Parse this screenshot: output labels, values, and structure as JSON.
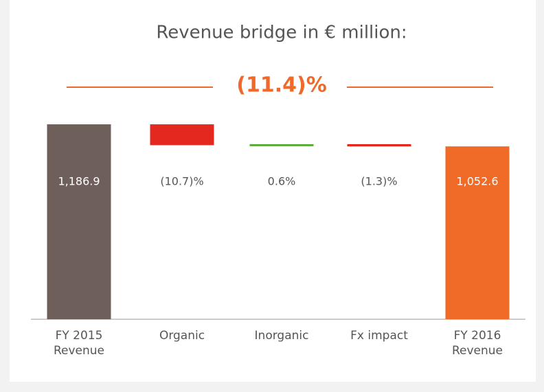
{
  "chart_data": {
    "type": "waterfall",
    "title": "Revenue bridge in € million:",
    "annotation": "(11.4)%",
    "categories": [
      "FY 2015 Revenue",
      "Organic",
      "Inorganic",
      "Fx impact",
      "FY 2016 Revenue"
    ],
    "kinds": [
      "total",
      "percent",
      "percent",
      "percent",
      "total"
    ],
    "values": [
      1186.9,
      -10.7,
      0.6,
      -1.3,
      1052.6
    ],
    "value_labels": [
      "1,186.9",
      "(10.7)%",
      "0.6%",
      "(1.3)%",
      "1,052.6"
    ],
    "colors": {
      "start": "#6e5f5a",
      "end": "#f06a28",
      "positive": "#5aab3a",
      "negative": "#e3281f",
      "annotation": "#ef6a2a"
    },
    "ylim": [
      0,
      1250
    ]
  }
}
